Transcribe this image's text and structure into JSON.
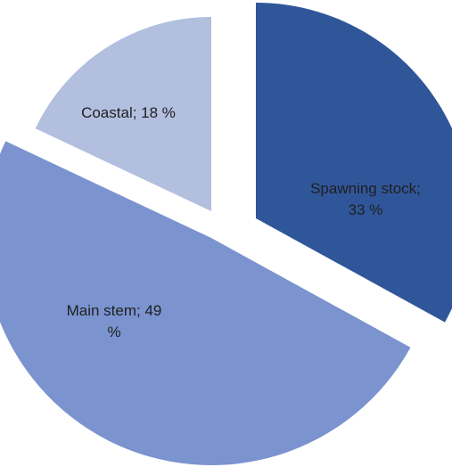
{
  "chart_data": {
    "type": "pie",
    "title": "",
    "slices": [
      {
        "label_lines": [
          "Spawning stock;",
          "33 %"
        ],
        "value": 33,
        "color": "#30569a"
      },
      {
        "label_lines": [
          "Main stem; 49",
          "%"
        ],
        "value": 49,
        "color": "#7b93cf"
      },
      {
        "label_lines": [
          "Coastal; 18 %"
        ],
        "value": 18,
        "color": "#b3bfdf"
      }
    ],
    "legend": "none",
    "exploded": true
  }
}
